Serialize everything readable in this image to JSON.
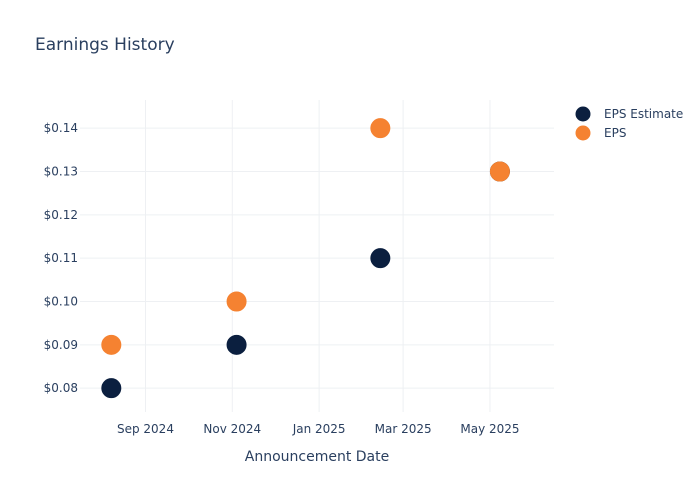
{
  "chart_data": {
    "type": "scatter",
    "title": "Earnings History",
    "xlabel": "Announcement Date",
    "ylabel": "",
    "x_tick_labels": [
      "Sep 2024",
      "Nov 2024",
      "Jan 2025",
      "Mar 2025",
      "May 2025"
    ],
    "x_ticks": [
      "2024-09-01",
      "2024-11-01",
      "2025-01-01",
      "2025-03-01",
      "2025-05-01"
    ],
    "xlim": [
      "2024-07-17",
      "2025-06-15"
    ],
    "y_tick_labels": [
      "$0.08",
      "$0.09",
      "$0.10",
      "$0.11",
      "$0.12",
      "$0.13",
      "$0.14"
    ],
    "y_ticks": [
      0.08,
      0.09,
      0.1,
      0.11,
      0.12,
      0.13,
      0.14
    ],
    "ylim": [
      0.0745,
      0.1465
    ],
    "grid": true,
    "legend_position": "top-right",
    "series": [
      {
        "name": "EPS Estimate",
        "color": "#0b1f3f",
        "points": [
          {
            "x": "2024-08-08",
            "y": 0.08
          },
          {
            "x": "2024-11-04",
            "y": 0.09
          },
          {
            "x": "2025-02-13",
            "y": 0.11
          },
          {
            "x": "2025-05-08",
            "y": 0.13
          }
        ]
      },
      {
        "name": "EPS",
        "color": "#f58231",
        "points": [
          {
            "x": "2024-08-08",
            "y": 0.09
          },
          {
            "x": "2024-11-04",
            "y": 0.1
          },
          {
            "x": "2025-02-13",
            "y": 0.14
          },
          {
            "x": "2025-05-08",
            "y": 0.13
          }
        ]
      }
    ]
  }
}
